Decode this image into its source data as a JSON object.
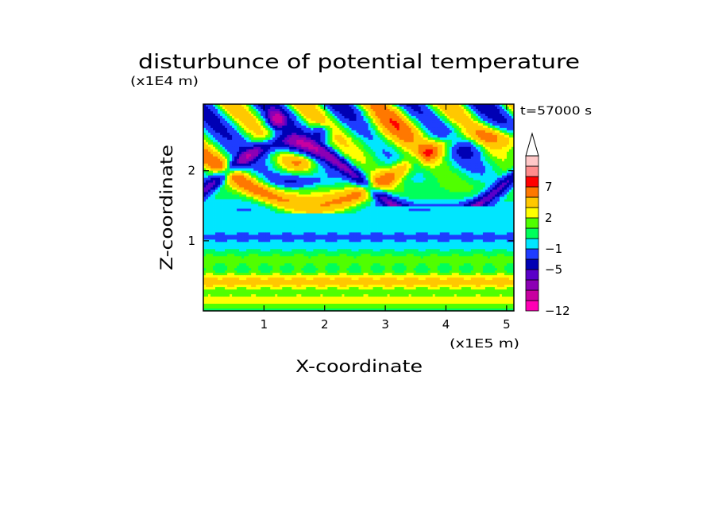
{
  "chart_data": {
    "type": "heatmap",
    "title": "disturbunce of potential temperature",
    "xlabel": "X-coordinate",
    "ylabel": "Z-coordinate",
    "x_unit": "(x1E5 m)",
    "y_unit": "(x1E4 m)",
    "time_label": "t=57000 s",
    "xlim": [
      0,
      5.12
    ],
    "ylim": [
      0,
      2.95
    ],
    "x_ticks": [
      {
        "value": 1,
        "label": "1"
      },
      {
        "value": 2,
        "label": "2"
      },
      {
        "value": 3,
        "label": "3"
      },
      {
        "value": 4,
        "label": "4"
      },
      {
        "value": 5,
        "label": "5"
      }
    ],
    "y_ticks": [
      {
        "value": 1,
        "label": "1"
      },
      {
        "value": 2,
        "label": "2"
      }
    ],
    "colorbar": {
      "levels": [
        -12,
        -10,
        -8,
        -6,
        -5,
        -3,
        -1,
        0,
        1,
        2,
        3,
        5,
        7,
        9,
        11
      ],
      "colors": [
        "#ff00b4",
        "#c800a0",
        "#8c00b4",
        "#5a00c8",
        "#0000b4",
        "#1e3cff",
        "#00e6ff",
        "#00ff5a",
        "#50ff00",
        "#ffff00",
        "#ffc800",
        "#ff7800",
        "#ff0000",
        "#ff8c8c",
        "#ffc8c8"
      ],
      "labels": [
        {
          "value": -12,
          "label": "−12"
        },
        {
          "value": -5,
          "label": "−5"
        },
        {
          "value": -1,
          "label": "−1"
        },
        {
          "value": 2,
          "label": "2"
        },
        {
          "value": 7,
          "label": "7"
        }
      ]
    },
    "grid": false
  }
}
